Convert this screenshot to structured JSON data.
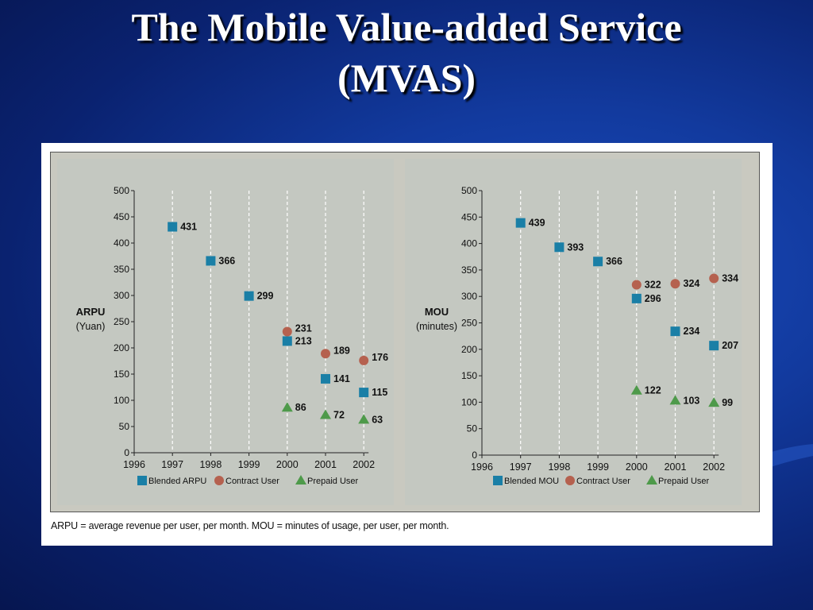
{
  "slide": {
    "title_line1": "The Mobile Value-added Service",
    "title_line2": "(MVAS)"
  },
  "caption": "ARPU = average revenue per user, per month.   MOU = minutes of usage, per user, per month.",
  "colors": {
    "blended": "#1a7fa6",
    "contract": "#b5614f",
    "prepaid": "#4e9a4a"
  },
  "chart_data": [
    {
      "type": "scatter",
      "ylabel_line1": "ARPU",
      "ylabel_line2": "(Yuan)",
      "x_ticks": [
        1996,
        1997,
        1998,
        1999,
        2000,
        2001,
        2002
      ],
      "y_ticks": [
        0,
        50,
        100,
        150,
        200,
        250,
        300,
        350,
        400,
        450,
        500
      ],
      "xlim": [
        1996,
        2002
      ],
      "ylim": [
        0,
        500
      ],
      "grid": "vertical dashed lines at each year",
      "legend_position": "bottom",
      "series": [
        {
          "name": "Blended ARPU",
          "marker": "square",
          "color": "#1a7fa6",
          "points": [
            [
              1997,
              431
            ],
            [
              1998,
              366
            ],
            [
              1999,
              299
            ],
            [
              2000,
              213
            ],
            [
              2001,
              141
            ],
            [
              2002,
              115
            ]
          ]
        },
        {
          "name": "Contract User",
          "marker": "circle",
          "color": "#b5614f",
          "points": [
            [
              2000,
              231
            ],
            [
              2001,
              189
            ],
            [
              2002,
              176
            ]
          ]
        },
        {
          "name": "Prepaid User",
          "marker": "triangle",
          "color": "#4e9a4a",
          "points": [
            [
              2000,
              86
            ],
            [
              2001,
              72
            ],
            [
              2002,
              63
            ]
          ]
        }
      ]
    },
    {
      "type": "scatter",
      "ylabel_line1": "MOU",
      "ylabel_line2": "(minutes)",
      "x_ticks": [
        1996,
        1997,
        1998,
        1999,
        2000,
        2001,
        2002
      ],
      "y_ticks": [
        0,
        50,
        100,
        150,
        200,
        250,
        300,
        350,
        400,
        450,
        500
      ],
      "xlim": [
        1996,
        2002
      ],
      "ylim": [
        0,
        500
      ],
      "grid": "vertical dashed lines at each year",
      "legend_position": "bottom",
      "series": [
        {
          "name": "Blended MOU",
          "marker": "square",
          "color": "#1a7fa6",
          "points": [
            [
              1997,
              439
            ],
            [
              1998,
              393
            ],
            [
              1999,
              366
            ],
            [
              2000,
              296
            ],
            [
              2001,
              234
            ],
            [
              2002,
              207
            ]
          ]
        },
        {
          "name": "Contract User",
          "marker": "circle",
          "color": "#b5614f",
          "points": [
            [
              2000,
              322
            ],
            [
              2001,
              324
            ],
            [
              2002,
              334
            ]
          ]
        },
        {
          "name": "Prepaid User",
          "marker": "triangle",
          "color": "#4e9a4a",
          "points": [
            [
              2000,
              122
            ],
            [
              2001,
              103
            ],
            [
              2002,
              99
            ]
          ]
        }
      ]
    }
  ]
}
